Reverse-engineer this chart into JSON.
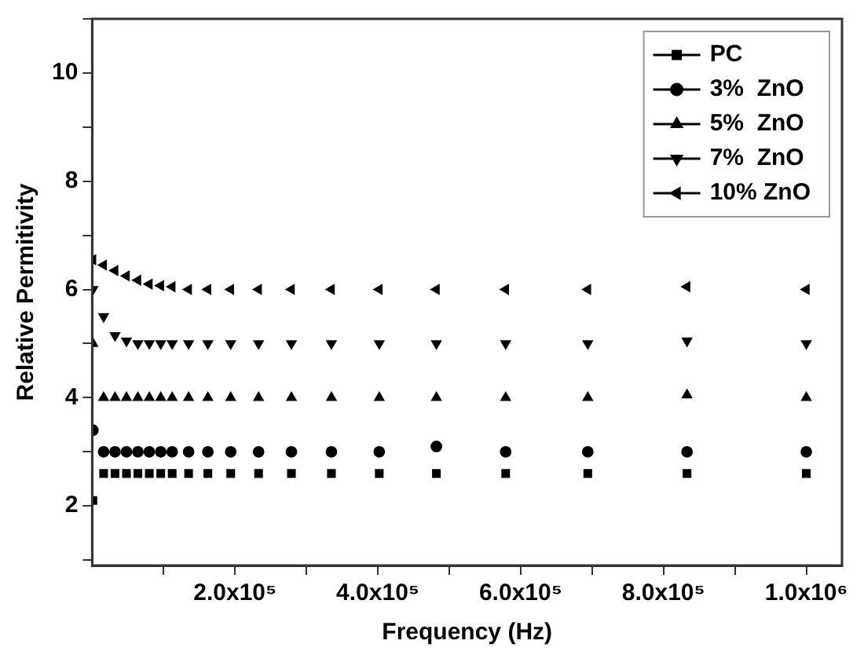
{
  "chart_data": {
    "type": "scatter",
    "xlabel": "Frequency (Hz)",
    "ylabel": "Relative Permitivity",
    "x": [
      1000,
      16000,
      32000,
      48000,
      64000,
      80000,
      96000,
      112000,
      135000,
      162000,
      194000,
      233000,
      279000,
      335000,
      402000,
      482000,
      579000,
      694000,
      833000,
      1000000
    ],
    "series": [
      {
        "name": "PC",
        "color": "#000000",
        "marker": "square",
        "values": [
          2.1,
          2.6,
          2.6,
          2.6,
          2.6,
          2.6,
          2.6,
          2.6,
          2.6,
          2.6,
          2.6,
          2.6,
          2.6,
          2.6,
          2.6,
          2.6,
          2.6,
          2.6,
          2.6,
          2.6
        ]
      },
      {
        "name": "3%  ZnO",
        "color": "#000000",
        "marker": "circle",
        "values": [
          3.4,
          3.0,
          3.0,
          3.0,
          3.0,
          3.0,
          3.0,
          3.0,
          3.0,
          3.0,
          3.0,
          3.0,
          3.0,
          3.0,
          3.0,
          3.1,
          3.0,
          3.0,
          3.0,
          3.0
        ]
      },
      {
        "name": "5%  ZnO",
        "color": "#000000",
        "marker": "triangle",
        "values": [
          5.0,
          4.0,
          4.0,
          4.0,
          4.0,
          4.0,
          4.0,
          4.0,
          4.0,
          4.0,
          4.0,
          4.0,
          4.0,
          4.0,
          4.0,
          4.0,
          4.0,
          4.0,
          4.05,
          4.0
        ]
      },
      {
        "name": "7%  ZnO",
        "color": "#000000",
        "marker": "triangle-down",
        "values": [
          6.0,
          5.5,
          5.15,
          5.05,
          5.0,
          5.0,
          5.0,
          5.0,
          5.0,
          5.0,
          5.0,
          5.0,
          5.0,
          5.0,
          5.0,
          5.0,
          5.0,
          5.0,
          5.05,
          5.0
        ]
      },
      {
        "name": "10% ZnO",
        "color": "#000000",
        "marker": "triangle-left",
        "values": [
          6.55,
          6.45,
          6.35,
          6.25,
          6.17,
          6.1,
          6.07,
          6.05,
          6.0,
          6.0,
          6.0,
          6.0,
          6.0,
          6.0,
          6.0,
          6.0,
          6.0,
          6.0,
          6.05,
          6.0
        ]
      }
    ],
    "xlim": [
      0,
      1050000
    ],
    "xticks": [
      {
        "value": 100000,
        "label": null
      },
      {
        "value": 200000,
        "label": "2.0x10⁵"
      },
      {
        "value": 300000,
        "label": null
      },
      {
        "value": 400000,
        "label": "4.0x10⁵"
      },
      {
        "value": 500000,
        "label": null
      },
      {
        "value": 600000,
        "label": "6.0x10⁵"
      },
      {
        "value": 700000,
        "label": null
      },
      {
        "value": 800000,
        "label": "8.0x10⁵"
      },
      {
        "value": 900000,
        "label": null
      },
      {
        "value": 1000000,
        "label": "1.0x10⁶"
      }
    ],
    "ylim": [
      0.9,
      11
    ],
    "yticks": [
      {
        "value": 1,
        "label": null
      },
      2,
      {
        "value": 3,
        "label": null
      },
      4,
      {
        "value": 5,
        "label": null
      },
      6,
      {
        "value": 7,
        "label": null
      },
      8,
      {
        "value": 9,
        "label": null
      },
      10,
      {
        "value": 11,
        "label": null
      }
    ],
    "grid": false,
    "legend": "top right"
  }
}
